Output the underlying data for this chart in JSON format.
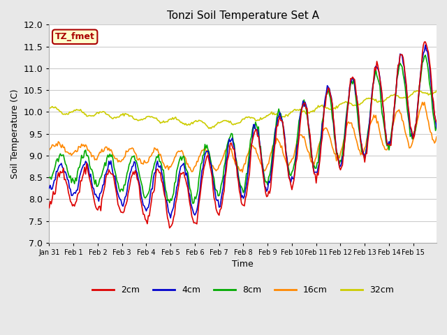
{
  "title": "Tonzi Soil Temperature Set A",
  "xlabel": "Time",
  "ylabel": "Soil Temperature (C)",
  "ylim": [
    7.0,
    12.0
  ],
  "yticks": [
    7.0,
    7.5,
    8.0,
    8.5,
    9.0,
    9.5,
    10.0,
    10.5,
    11.0,
    11.5,
    12.0
  ],
  "annotation_text": "TZ_fmet",
  "annotation_bg": "#ffffcc",
  "annotation_border": "#aa0000",
  "fig_bg_color": "#e8e8e8",
  "plot_bg_color": "#ffffff",
  "legend_labels": [
    "2cm",
    "4cm",
    "8cm",
    "16cm",
    "32cm"
  ],
  "line_colors": [
    "#dd0000",
    "#0000cc",
    "#00aa00",
    "#ff8800",
    "#cccc00"
  ],
  "xtick_labels": [
    "Jan 31",
    "Feb 1",
    "Feb 2",
    "Feb 3",
    "Feb 4",
    "Feb 5",
    "Feb 6",
    "Feb 7",
    "Feb 8",
    "Feb 9",
    "Feb 10",
    "Feb 11",
    "Feb 12",
    "Feb 13",
    "Feb 14",
    "Feb 15"
  ]
}
